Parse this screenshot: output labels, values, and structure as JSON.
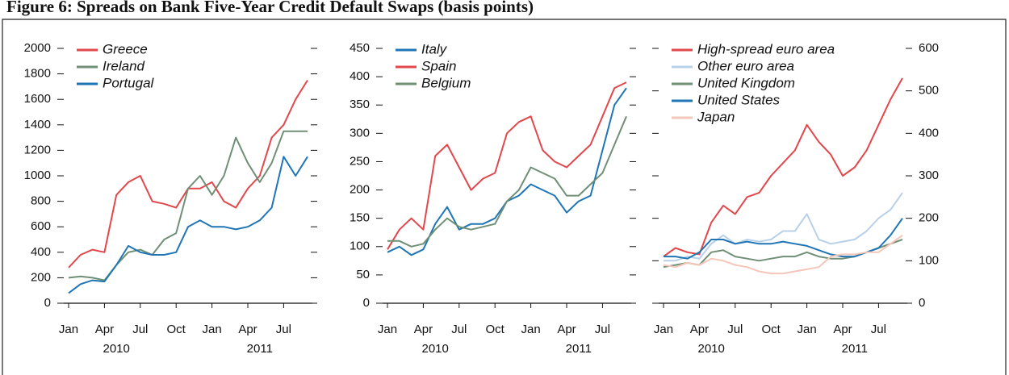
{
  "title": "Figure 6: Spreads on Bank Five-Year Credit Default Swaps (basis points)",
  "chart_data": [
    {
      "type": "line",
      "x": [
        "2010-01",
        "2010-02",
        "2010-03",
        "2010-04",
        "2010-05",
        "2010-06",
        "2010-07",
        "2010-08",
        "2010-09",
        "2010-10",
        "2010-11",
        "2010-12",
        "2011-01",
        "2011-02",
        "2011-03",
        "2011-04",
        "2011-05",
        "2011-06",
        "2011-07",
        "2011-08",
        "2011-09"
      ],
      "xlim": [
        "2010-01",
        "2011-09"
      ],
      "xticks": [
        {
          "value": "2010-01",
          "label": "Jan"
        },
        {
          "value": "2010-04",
          "label": "Apr"
        },
        {
          "value": "2010-07",
          "label": "Jul"
        },
        {
          "value": "2010-10",
          "label": "Oct"
        },
        {
          "value": "2011-01",
          "label": "Jan"
        },
        {
          "value": "2011-04",
          "label": "Apr"
        },
        {
          "value": "2011-07",
          "label": "Jul"
        }
      ],
      "year_labels": [
        {
          "value": "2010-05",
          "label": "2010"
        },
        {
          "value": "2011-05",
          "label": "2011"
        }
      ],
      "ylim": [
        0,
        2000
      ],
      "yticks": [
        0,
        200,
        400,
        600,
        800,
        1000,
        1200,
        1400,
        1600,
        1800,
        2000
      ],
      "ytick_side": "left",
      "legend": "upper left",
      "grid": false,
      "series": [
        {
          "name": "Greece",
          "color": "#e2474c",
          "values": [
            280,
            380,
            420,
            400,
            850,
            950,
            1000,
            800,
            780,
            750,
            900,
            900,
            950,
            800,
            750,
            900,
            1000,
            1300,
            1400,
            1600,
            1750
          ]
        },
        {
          "name": "Ireland",
          "color": "#6f8f76",
          "values": [
            200,
            210,
            200,
            180,
            300,
            400,
            420,
            380,
            500,
            550,
            900,
            1000,
            850,
            1000,
            1300,
            1100,
            950,
            1100,
            1350,
            1350,
            1350
          ]
        },
        {
          "name": "Portugal",
          "color": "#1f75b5",
          "values": [
            80,
            150,
            180,
            170,
            300,
            450,
            400,
            380,
            380,
            400,
            600,
            650,
            600,
            600,
            580,
            600,
            650,
            750,
            1150,
            1000,
            1150
          ]
        }
      ]
    },
    {
      "type": "line",
      "x": [
        "2010-01",
        "2010-02",
        "2010-03",
        "2010-04",
        "2010-05",
        "2010-06",
        "2010-07",
        "2010-08",
        "2010-09",
        "2010-10",
        "2010-11",
        "2010-12",
        "2011-01",
        "2011-02",
        "2011-03",
        "2011-04",
        "2011-05",
        "2011-06",
        "2011-07",
        "2011-08",
        "2011-09"
      ],
      "xlim": [
        "2010-01",
        "2011-09"
      ],
      "xticks": [
        {
          "value": "2010-01",
          "label": "Jan"
        },
        {
          "value": "2010-04",
          "label": "Apr"
        },
        {
          "value": "2010-07",
          "label": "Jul"
        },
        {
          "value": "2010-10",
          "label": "Oct"
        },
        {
          "value": "2011-01",
          "label": "Jan"
        },
        {
          "value": "2011-04",
          "label": "Apr"
        },
        {
          "value": "2011-07",
          "label": "Jul"
        }
      ],
      "year_labels": [
        {
          "value": "2010-05",
          "label": "2010"
        },
        {
          "value": "2011-05",
          "label": "2011"
        }
      ],
      "ylim": [
        0,
        450
      ],
      "yticks": [
        0,
        50,
        100,
        150,
        200,
        250,
        300,
        350,
        400,
        450
      ],
      "ytick_side": "left",
      "legend": "upper left",
      "grid": false,
      "series": [
        {
          "name": "Italy",
          "color": "#1f75b5",
          "values": [
            90,
            100,
            85,
            95,
            140,
            170,
            130,
            140,
            140,
            150,
            180,
            190,
            210,
            200,
            190,
            160,
            180,
            190,
            270,
            350,
            380
          ]
        },
        {
          "name": "Spain",
          "color": "#e2474c",
          "values": [
            95,
            130,
            150,
            130,
            260,
            280,
            240,
            200,
            220,
            230,
            300,
            320,
            330,
            270,
            250,
            240,
            260,
            280,
            330,
            380,
            390
          ]
        },
        {
          "name": "Belgium",
          "color": "#6f8f76",
          "values": [
            110,
            110,
            100,
            105,
            130,
            150,
            135,
            130,
            135,
            140,
            180,
            200,
            240,
            230,
            220,
            190,
            190,
            210,
            230,
            280,
            330
          ]
        }
      ]
    },
    {
      "type": "line",
      "x": [
        "2010-01",
        "2010-02",
        "2010-03",
        "2010-04",
        "2010-05",
        "2010-06",
        "2010-07",
        "2010-08",
        "2010-09",
        "2010-10",
        "2010-11",
        "2010-12",
        "2011-01",
        "2011-02",
        "2011-03",
        "2011-04",
        "2011-05",
        "2011-06",
        "2011-07",
        "2011-08",
        "2011-09"
      ],
      "xlim": [
        "2010-01",
        "2011-09"
      ],
      "xticks": [
        {
          "value": "2010-01",
          "label": "Jan"
        },
        {
          "value": "2010-04",
          "label": "Apr"
        },
        {
          "value": "2010-07",
          "label": "Jul"
        },
        {
          "value": "2010-10",
          "label": "Oct"
        },
        {
          "value": "2011-01",
          "label": "Jan"
        },
        {
          "value": "2011-04",
          "label": "Apr"
        },
        {
          "value": "2011-07",
          "label": "Jul"
        }
      ],
      "year_labels": [
        {
          "value": "2010-05",
          "label": "2010"
        },
        {
          "value": "2011-05",
          "label": "2011"
        }
      ],
      "ylim": [
        0,
        600
      ],
      "yticks": [
        0,
        100,
        200,
        300,
        400,
        500,
        600
      ],
      "ytick_side": "right",
      "legend": "upper left",
      "grid": false,
      "series": [
        {
          "name": "High-spread euro area",
          "color": "#e2474c",
          "values": [
            110,
            130,
            120,
            115,
            190,
            230,
            210,
            250,
            260,
            300,
            330,
            360,
            420,
            380,
            350,
            300,
            320,
            360,
            420,
            480,
            530
          ]
        },
        {
          "name": "Other euro area",
          "color": "#b8d0e8",
          "values": [
            100,
            100,
            110,
            105,
            140,
            160,
            140,
            150,
            145,
            150,
            170,
            170,
            210,
            150,
            140,
            145,
            150,
            170,
            200,
            220,
            260
          ]
        },
        {
          "name": "United Kingdom",
          "color": "#6f8f76",
          "values": [
            85,
            90,
            95,
            90,
            120,
            125,
            110,
            105,
            100,
            105,
            110,
            110,
            120,
            110,
            105,
            105,
            110,
            120,
            130,
            140,
            150
          ]
        },
        {
          "name": "United States",
          "color": "#1f75b5",
          "values": [
            110,
            110,
            105,
            120,
            150,
            150,
            140,
            145,
            140,
            140,
            145,
            140,
            135,
            125,
            115,
            110,
            110,
            120,
            130,
            160,
            200
          ]
        },
        {
          "name": "Japan",
          "color": "#f5c6ba",
          "values": [
            90,
            85,
            95,
            90,
            105,
            100,
            90,
            85,
            75,
            70,
            70,
            75,
            80,
            85,
            110,
            115,
            115,
            120,
            120,
            140,
            160
          ]
        }
      ]
    }
  ]
}
